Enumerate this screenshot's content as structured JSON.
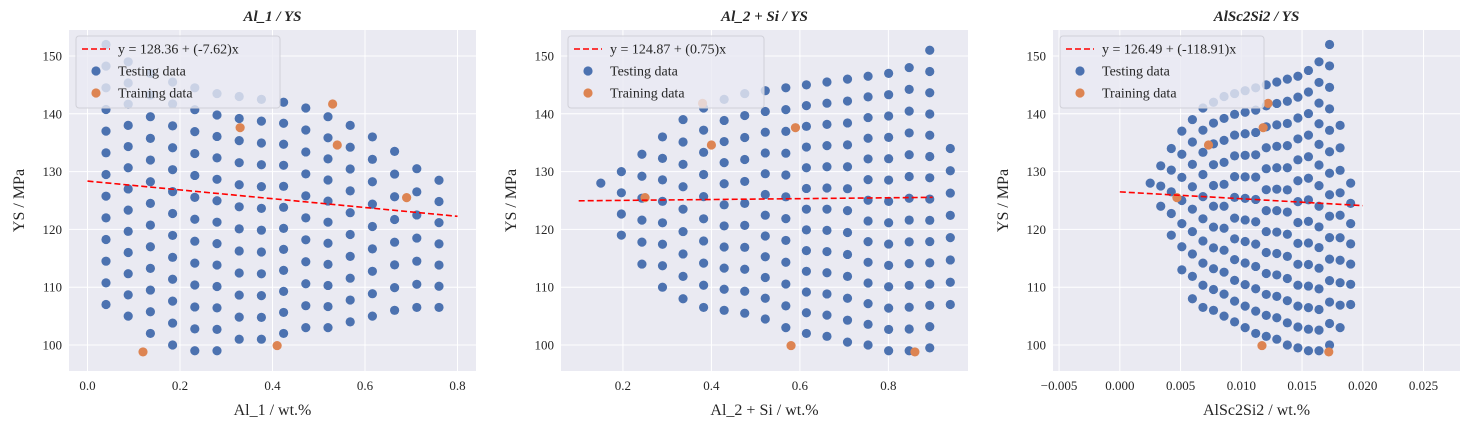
{
  "colors": {
    "background": "#eaeaf2",
    "grid": "#ffffff",
    "testing": "#4c72b0",
    "training": "#dd8452",
    "fit": "#ff0000"
  },
  "chart_data": [
    {
      "type": "scatter",
      "title": "Al_1 / YS",
      "xlabel": "Al_1 / wt.%",
      "ylabel": "YS / MPa",
      "xlim": [
        -0.04,
        0.84
      ],
      "ylim": [
        95.5,
        154.5
      ],
      "xticks": [
        0.0,
        0.2,
        0.4,
        0.6,
        0.8
      ],
      "xtick_labels": [
        "0.0",
        "0.2",
        "0.4",
        "0.6",
        "0.8"
      ],
      "yticks": [
        100,
        110,
        120,
        130,
        140,
        150
      ],
      "ytick_labels": [
        "100",
        "110",
        "120",
        "130",
        "140",
        "150"
      ],
      "grid": true,
      "legend_position": "top-left",
      "fit": {
        "label": "y = 128.36 + (-7.62)x",
        "intercept": 128.36,
        "slope": -7.62,
        "x_range": [
          0.0,
          0.8
        ]
      },
      "series": [
        {
          "name": "Testing data",
          "grid_spec": {
            "x_start": 0.04,
            "x_end": 0.76,
            "columns": 16,
            "y_min": [
              107,
              105,
              102,
              100,
              99,
              99,
              101,
              101,
              102,
              103,
              103,
              104,
              105,
              106,
              106.5,
              106.5
            ],
            "y_max": [
              152,
              149,
              147,
              145.5,
              144.5,
              143.5,
              143,
              142.5,
              142,
              141,
              139.5,
              138,
              136,
              133.5,
              130.5,
              128.5
            ]
          }
        },
        {
          "name": "Training data",
          "points": [
            [
              0.12,
              98.8
            ],
            [
              0.33,
              137.6
            ],
            [
              0.41,
              99.9
            ],
            [
              0.53,
              141.7
            ],
            [
              0.54,
              134.6
            ],
            [
              0.69,
              125.5
            ]
          ]
        }
      ]
    },
    {
      "type": "scatter",
      "title": "Al_2 + Si / YS",
      "xlabel": "Al_2 + Si / wt.%",
      "ylabel": "YS / MPa",
      "xlim": [
        0.06,
        0.98
      ],
      "ylim": [
        95.5,
        154.5
      ],
      "xticks": [
        0.2,
        0.4,
        0.6,
        0.8
      ],
      "xtick_labels": [
        "0.2",
        "0.4",
        "0.6",
        "0.8"
      ],
      "yticks": [
        100,
        110,
        120,
        130,
        140,
        150
      ],
      "ytick_labels": [
        "100",
        "110",
        "120",
        "130",
        "140",
        "150"
      ],
      "grid": true,
      "legend_position": "top-left",
      "fit": {
        "label": "y = 124.87 + (0.75)x",
        "intercept": 124.87,
        "slope": 0.75,
        "x_range": [
          0.1,
          0.9
        ]
      },
      "series": [
        {
          "name": "Testing data",
          "grid_spec": {
            "x_start": 0.15,
            "x_end": 0.94,
            "columns": 18,
            "y_min": [
              128,
              119,
              114,
              110,
              108,
              106.5,
              106,
              105.5,
              104.5,
              103,
              102,
              101.5,
              100.5,
              100,
              99,
              99,
              99.5,
              107
            ],
            "y_max": [
              128,
              130,
              133,
              136,
              139,
              141,
              142.5,
              143.5,
              144,
              144.5,
              145,
              145.5,
              146,
              146.5,
              147,
              148,
              151,
              134
            ]
          }
        },
        {
          "name": "Training data",
          "points": [
            [
              0.25,
              125.5
            ],
            [
              0.38,
              141.8
            ],
            [
              0.4,
              134.6
            ],
            [
              0.58,
              99.9
            ],
            [
              0.59,
              137.6
            ],
            [
              0.86,
              98.8
            ]
          ]
        }
      ]
    },
    {
      "type": "scatter",
      "title": "AlSc2Si2 / YS",
      "xlabel": "AlSc2Si2 / wt.%",
      "ylabel": "YS / MPa",
      "xlim": [
        -0.0055,
        0.028
      ],
      "ylim": [
        95.5,
        154.5
      ],
      "xticks": [
        -0.005,
        0.0,
        0.005,
        0.01,
        0.015,
        0.02,
        0.025
      ],
      "xtick_labels": [
        "−0.005",
        "0.000",
        "0.005",
        "0.010",
        "0.015",
        "0.020",
        "0.025"
      ],
      "yticks": [
        100,
        110,
        120,
        130,
        140,
        150
      ],
      "ytick_labels": [
        "100",
        "110",
        "120",
        "130",
        "140",
        "150"
      ],
      "grid": true,
      "legend_position": "top-left",
      "fit": {
        "label": "y = 126.49 + (-118.91)x",
        "intercept": 126.49,
        "slope": -118.91,
        "x_range": [
          0.0,
          0.02
        ]
      },
      "series": [
        {
          "name": "Testing data",
          "grid_spec": {
            "x_start": 0.0025,
            "x_end": 0.019,
            "columns": 20,
            "y_min": [
              128,
              124,
              119,
              113,
              108,
              106.5,
              106,
              105,
              104,
              103,
              102,
              101.5,
              101,
              100,
              99.5,
              99,
              99,
              100,
              103,
              107
            ],
            "y_max": [
              128.5,
              131,
              134,
              137,
              139,
              141,
              142,
              143,
              143.5,
              144,
              144.5,
              145,
              145.5,
              146,
              146.5,
              147.5,
              149,
              152,
              138,
              128
            ]
          }
        },
        {
          "name": "Training data",
          "points": [
            [
              0.0047,
              125.5
            ],
            [
              0.0073,
              134.6
            ],
            [
              0.0118,
              137.6
            ],
            [
              0.0117,
              99.9
            ],
            [
              0.0122,
              141.8
            ],
            [
              0.0172,
              98.8
            ]
          ]
        }
      ]
    }
  ]
}
